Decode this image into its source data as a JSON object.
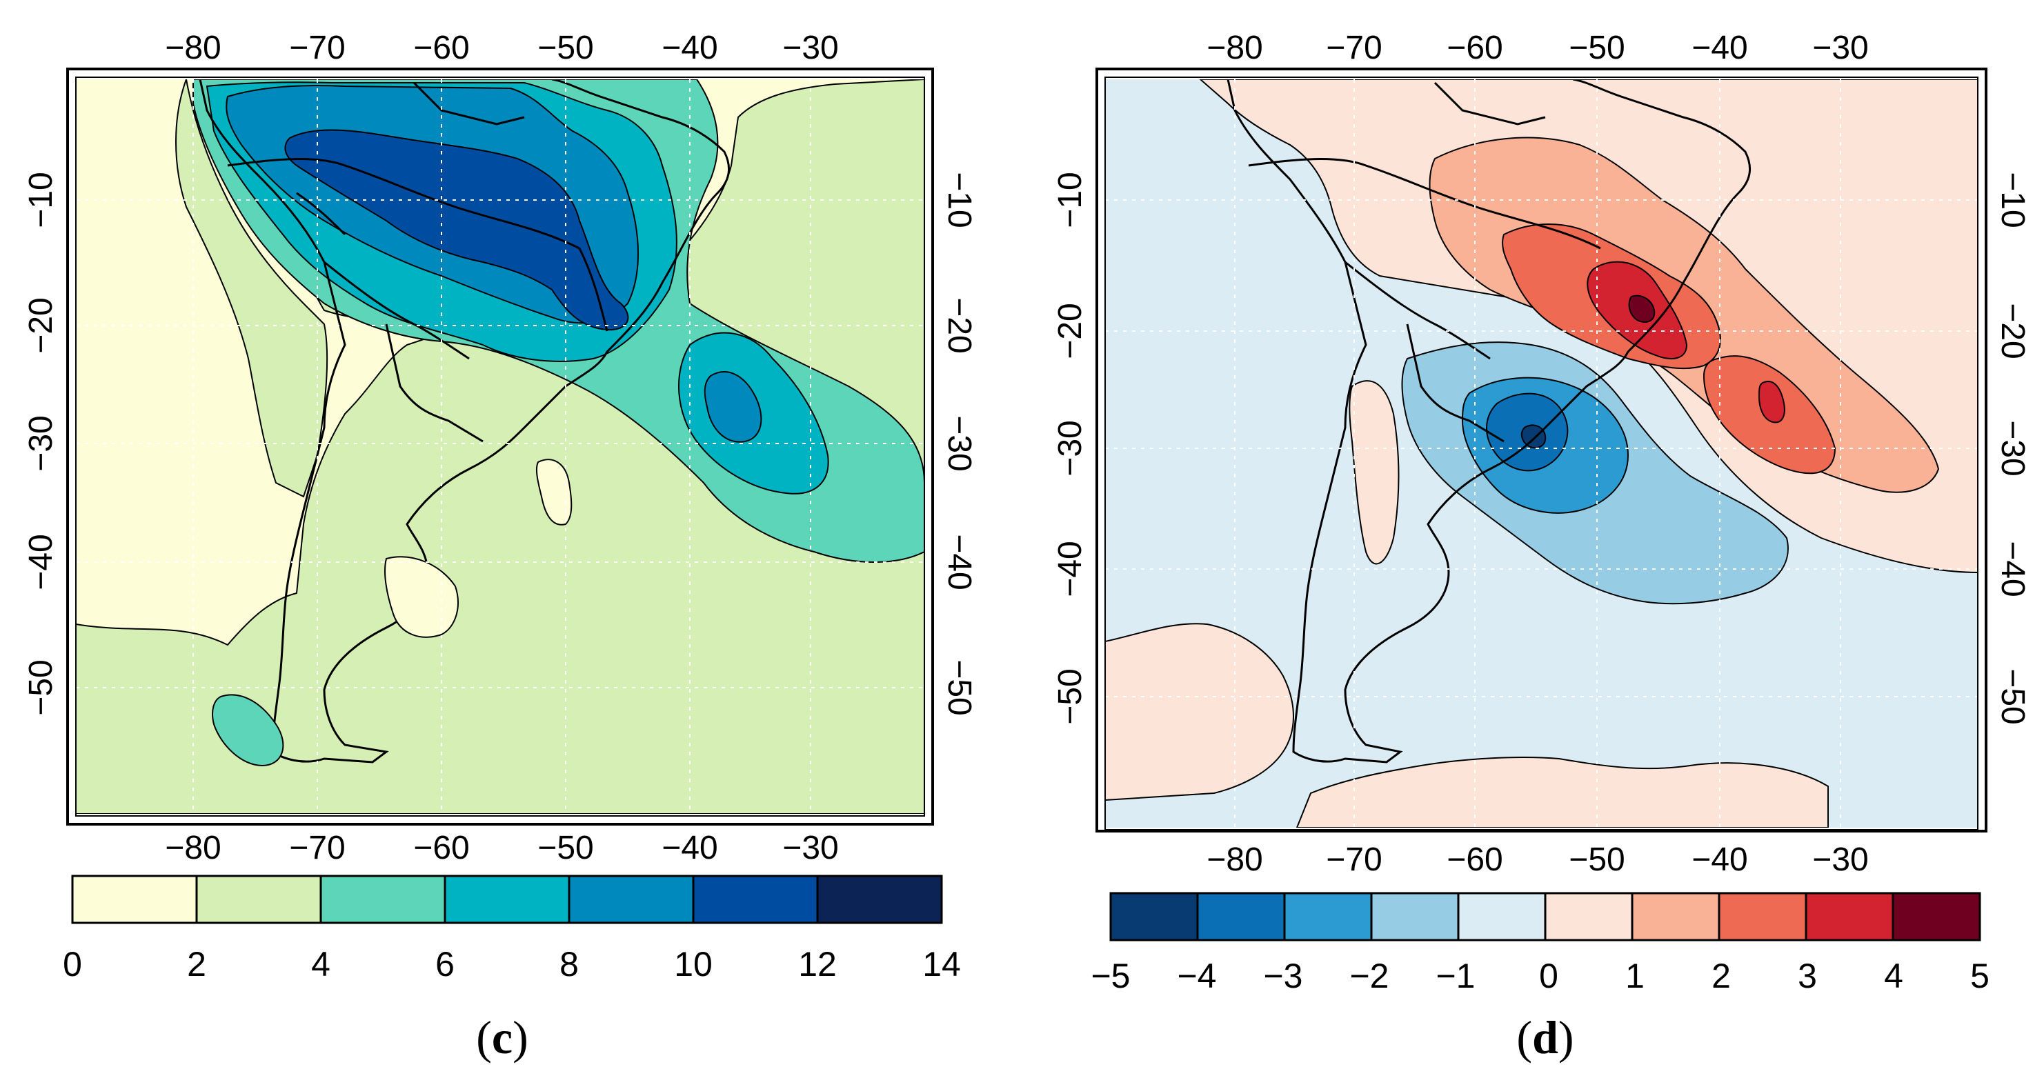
{
  "panels": [
    {
      "id": "c",
      "label": "c",
      "lon_ticks": [
        "−80",
        "−70",
        "−60",
        "−50",
        "−40",
        "−30"
      ],
      "lat_ticks": [
        "−10",
        "−20",
        "−30",
        "−40",
        "−50"
      ],
      "colorbar": {
        "ticks": [
          "0",
          "2",
          "4",
          "6",
          "8",
          "10",
          "12",
          "14"
        ],
        "colors": [
          "#fdfdd7",
          "#d5efb4",
          "#5cd5b9",
          "#00b3c3",
          "#0089bd",
          "#004ca0",
          "#0c2355"
        ]
      },
      "colors": {
        "background": "#fdfdd7",
        "land_low": "#fdfdd7",
        "ocean": "#d5efb4"
      }
    },
    {
      "id": "d",
      "label": "d",
      "lon_ticks": [
        "−80",
        "−70",
        "−60",
        "−50",
        "−40",
        "−30"
      ],
      "lat_ticks": [
        "−10",
        "−20",
        "−30",
        "−40",
        "−50"
      ],
      "colorbar": {
        "ticks": [
          "−5",
          "−4",
          "−3",
          "−2",
          "−1",
          "0",
          "1",
          "2",
          "3",
          "4",
          "5"
        ],
        "colors": [
          "#083b72",
          "#0b6fb5",
          "#2c9bd1",
          "#96cde5",
          "#dbecf4",
          "#fde4d8",
          "#f9b296",
          "#ef6a52",
          "#d32331",
          "#6f0020"
        ]
      },
      "colors": {
        "background": "#dbecf4",
        "positive_bg": "#fde4d8"
      }
    }
  ]
}
